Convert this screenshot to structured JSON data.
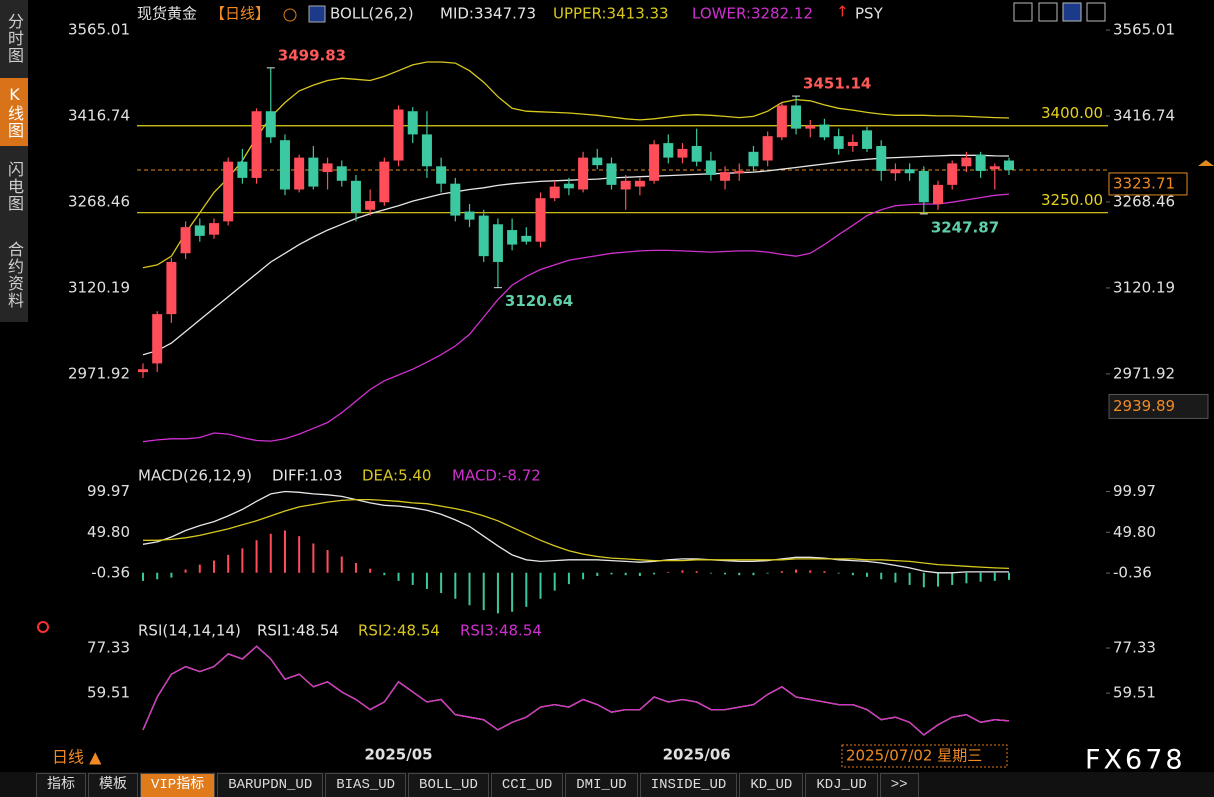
{
  "chart_data": [
    {
      "type": "candlestick",
      "title": "现货黄金",
      "period_tag": "【日线】",
      "indicator": "BOLL(26,2)",
      "extra_label": "PSY",
      "categories": [
        null,
        null,
        null,
        null,
        null,
        null,
        null,
        null,
        null,
        null,
        null,
        null,
        null,
        null,
        null,
        null,
        null,
        null,
        "2025/05",
        null,
        null,
        null,
        null,
        null,
        null,
        null,
        null,
        null,
        null,
        null,
        null,
        null,
        null,
        null,
        null,
        null,
        null,
        null,
        null,
        "2025/06",
        null,
        null,
        null,
        null,
        null,
        null,
        null,
        null,
        null,
        null,
        null,
        null,
        null,
        null,
        null,
        null,
        null,
        null,
        null,
        null,
        null,
        null
      ],
      "open": [
        2975,
        2990,
        3075,
        3180,
        3228,
        3212,
        3235,
        3338,
        3310,
        3425,
        3375,
        3290,
        3345,
        3320,
        3330,
        3305,
        3255,
        3268,
        3340,
        3425,
        3385,
        3330,
        3300,
        3252,
        3245,
        3230,
        3220,
        3210,
        3200,
        3275,
        3300,
        3290,
        3345,
        3335,
        3290,
        3295,
        3305,
        3370,
        3345,
        3365,
        3340,
        3305,
        3318,
        3355,
        3340,
        3380,
        3435,
        3395,
        3402,
        3382,
        3365,
        3392,
        3365,
        3318,
        3325,
        3322,
        3265,
        3298,
        3330,
        3350,
        3325,
        3340
      ],
      "high": [
        2990,
        3080,
        3172,
        3235,
        3240,
        3240,
        3345,
        3360,
        3430,
        3499.83,
        3385,
        3350,
        3365,
        3345,
        3340,
        3315,
        3290,
        3345,
        3435,
        3432,
        3425,
        3345,
        3310,
        3265,
        3255,
        3240,
        3240,
        3225,
        3285,
        3305,
        3310,
        3355,
        3360,
        3345,
        3315,
        3310,
        3375,
        3385,
        3370,
        3395,
        3355,
        3330,
        3335,
        3365,
        3390,
        3440,
        3451.14,
        3410,
        3412,
        3395,
        3385,
        3398,
        3375,
        3335,
        3335,
        3330,
        3305,
        3340,
        3355,
        3355,
        3335,
        3345
      ],
      "low": [
        2965,
        2975,
        3060,
        3170,
        3200,
        3205,
        3228,
        3300,
        3300,
        3370,
        3280,
        3285,
        3290,
        3290,
        3295,
        3235,
        3245,
        3262,
        3330,
        3370,
        3310,
        3285,
        3235,
        3225,
        3165,
        3120.64,
        3185,
        3195,
        3190,
        3270,
        3280,
        3285,
        3325,
        3290,
        3255,
        3280,
        3300,
        3335,
        3335,
        3330,
        3305,
        3290,
        3305,
        3320,
        3330,
        3375,
        3385,
        3380,
        3375,
        3350,
        3355,
        3355,
        3305,
        3305,
        3305,
        3247.87,
        3255,
        3290,
        3320,
        3310,
        3290,
        3315
      ],
      "close": [
        2980,
        3075,
        3165,
        3225,
        3210,
        3232,
        3338,
        3310,
        3425,
        3380,
        3290,
        3345,
        3295,
        3335,
        3305,
        3250,
        3270,
        3338,
        3428,
        3385,
        3330,
        3300,
        3245,
        3238,
        3175,
        3165,
        3195,
        3200,
        3275,
        3295,
        3292,
        3345,
        3332,
        3298,
        3305,
        3305,
        3368,
        3345,
        3360,
        3338,
        3315,
        3320,
        3322,
        3330,
        3382,
        3435,
        3395,
        3400,
        3380,
        3360,
        3372,
        3360,
        3322,
        3325,
        3318,
        3268,
        3298,
        3335,
        3345,
        3322,
        3330,
        3323.71
      ],
      "up_color": "#ff4d5a",
      "down_color": "#3cc8a0",
      "series": [
        {
          "name": "MID:3347.73",
          "color": "#e6e6e6",
          "values": [
            3005,
            3012,
            3025,
            3045,
            3065,
            3085,
            3105,
            3125,
            3145,
            3165,
            3180,
            3195,
            3208,
            3220,
            3230,
            3240,
            3248,
            3255,
            3262,
            3270,
            3276,
            3282,
            3286,
            3290,
            3293,
            3297,
            3300,
            3302,
            3304,
            3305,
            3306,
            3307,
            3308,
            3310,
            3311,
            3312,
            3313,
            3314,
            3315,
            3316,
            3317,
            3318,
            3319,
            3320,
            3322,
            3325,
            3328,
            3331,
            3334,
            3337,
            3340,
            3342,
            3344,
            3345,
            3346,
            3347,
            3348,
            3349,
            3349,
            3349,
            3348,
            3347.73
          ]
        },
        {
          "name": "UPPER:3413.33",
          "color": "#d8c81e",
          "values": [
            3155,
            3160,
            3175,
            3215,
            3250,
            3285,
            3310,
            3340,
            3380,
            3415,
            3440,
            3460,
            3470,
            3478,
            3482,
            3480,
            3478,
            3485,
            3495,
            3505,
            3510,
            3510,
            3508,
            3495,
            3475,
            3450,
            3430,
            3425,
            3424,
            3423,
            3422,
            3420,
            3418,
            3415,
            3412,
            3410,
            3412,
            3415,
            3418,
            3419,
            3418,
            3416,
            3414,
            3416,
            3425,
            3440,
            3445,
            3443,
            3436,
            3430,
            3427,
            3423,
            3420,
            3418,
            3418,
            3418,
            3417,
            3417,
            3416,
            3415,
            3414,
            3413.33
          ]
        },
        {
          "name": "LOWER:3282.12",
          "color": "#d030d0",
          "values": [
            2855,
            2858,
            2860,
            2860,
            2862,
            2870,
            2868,
            2862,
            2857,
            2856,
            2860,
            2868,
            2878,
            2888,
            2905,
            2925,
            2945,
            2960,
            2970,
            2980,
            2992,
            3005,
            3020,
            3040,
            3070,
            3100,
            3125,
            3140,
            3152,
            3160,
            3168,
            3172,
            3176,
            3180,
            3182,
            3184,
            3185,
            3185,
            3184,
            3183,
            3182,
            3183,
            3184,
            3184,
            3182,
            3178,
            3175,
            3180,
            3195,
            3212,
            3228,
            3245,
            3255,
            3262,
            3264,
            3265,
            3265,
            3268,
            3272,
            3276,
            3280,
            3282.12
          ]
        }
      ],
      "ylim": [
        2832,
        3591
      ],
      "yticks": [
        3565.01,
        3416.74,
        3268.46,
        3120.19,
        2971.92
      ],
      "annotations": [
        3499.83,
        3451.14,
        3120.64,
        3247.87
      ],
      "hlines": [
        {
          "value": 3400,
          "label": "3400.00"
        },
        {
          "value": 3250,
          "label": "3250.00"
        }
      ],
      "hline_color": "#e6d21e",
      "last_price": 3323.71,
      "cursor_price": 2939.89
    },
    {
      "type": "macd",
      "title": "MACD(26,12,9)",
      "series": [
        {
          "name": "DIFF:1.03",
          "color": "#e6e6e6",
          "type": "line",
          "values": [
            35,
            38,
            44,
            52,
            58,
            63,
            70,
            78,
            88,
            97,
            100,
            99,
            97,
            96,
            94,
            90,
            86,
            83,
            82,
            80,
            77,
            72,
            65,
            57,
            45,
            33,
            22,
            16,
            14,
            15,
            16,
            16,
            16,
            15,
            14,
            13,
            14,
            16,
            17,
            17,
            16,
            15,
            14,
            14,
            15,
            17,
            19,
            19,
            18,
            16,
            15,
            14,
            12,
            9,
            6,
            2,
            0,
            0,
            1,
            1,
            1,
            1.03
          ]
        },
        {
          "name": "DEA:5.40",
          "color": "#d8c81e",
          "type": "line",
          "values": [
            40,
            40,
            41,
            43,
            46,
            50,
            54,
            59,
            64,
            70,
            76,
            81,
            84,
            87,
            89,
            90,
            90,
            89,
            88,
            86,
            85,
            82,
            79,
            75,
            70,
            64,
            56,
            48,
            40,
            33,
            27,
            23,
            20,
            18,
            17,
            16,
            15,
            15,
            15,
            16,
            16,
            16,
            16,
            16,
            16,
            16,
            17,
            17,
            17,
            17,
            17,
            16,
            16,
            15,
            14,
            12,
            10,
            9,
            8,
            7,
            6,
            5.4
          ]
        },
        {
          "name": "MACD:-8.72",
          "color": "#d030d0",
          "type": "bar",
          "values": [
            -10,
            -8,
            -6,
            4,
            10,
            15,
            22,
            30,
            40,
            48,
            52,
            45,
            36,
            28,
            20,
            12,
            5,
            -3,
            -10,
            -15,
            -20,
            -25,
            -32,
            -40,
            -46,
            -50,
            -48,
            -42,
            -32,
            -22,
            -14,
            -8,
            -4,
            -2,
            -3,
            -4,
            -2,
            1,
            3,
            2,
            -1,
            -2,
            -3,
            -3,
            -1,
            2,
            4,
            3,
            2,
            -1,
            -3,
            -5,
            -8,
            -12,
            -15,
            -18,
            -17,
            -15,
            -13,
            -11,
            -10,
            -8.72
          ]
        }
      ],
      "up_color": "#ff4d5a",
      "down_color": "#3cc8a0",
      "ylim": [
        -52,
        108
      ],
      "yticks": [
        99.97,
        {
          "value": 49.8,
          "label": "49.80"
        },
        -0.36
      ]
    },
    {
      "type": "rsi",
      "title": "RSI(14,14,14)",
      "series": [
        {
          "name": "RSI1:48.54",
          "color": "#e6e6e6",
          "values": [
            45,
            58,
            67,
            70,
            68,
            70,
            75,
            73,
            78,
            73,
            65,
            67,
            62,
            64,
            60,
            57,
            53,
            56,
            64,
            60,
            56,
            57,
            51,
            50,
            49,
            45,
            48,
            50,
            54,
            55,
            54,
            57,
            55,
            52,
            53,
            53,
            58,
            56,
            57,
            56,
            53,
            53,
            54,
            55,
            59,
            62,
            58,
            57,
            56,
            55,
            55,
            53,
            49,
            50,
            48,
            43,
            47,
            50,
            51,
            48,
            49,
            48.54
          ]
        },
        {
          "name": "RSI2:48.54",
          "color": "#d8c81e",
          "values": [
            45,
            58,
            67,
            70,
            68,
            70,
            75,
            73,
            78,
            73,
            65,
            67,
            62,
            64,
            60,
            57,
            53,
            56,
            64,
            60,
            56,
            57,
            51,
            50,
            49,
            45,
            48,
            50,
            54,
            55,
            54,
            57,
            55,
            52,
            53,
            53,
            58,
            56,
            57,
            56,
            53,
            53,
            54,
            55,
            59,
            62,
            58,
            57,
            56,
            55,
            55,
            53,
            49,
            50,
            48,
            43,
            47,
            50,
            51,
            48,
            49,
            48.54
          ]
        },
        {
          "name": "RSI3:48.54",
          "color": "#d030d0",
          "values": [
            45,
            58,
            67,
            70,
            68,
            70,
            75,
            73,
            78,
            73,
            65,
            67,
            62,
            64,
            60,
            57,
            53,
            56,
            64,
            60,
            56,
            57,
            51,
            50,
            49,
            45,
            48,
            50,
            54,
            55,
            54,
            57,
            55,
            52,
            53,
            53,
            58,
            56,
            57,
            56,
            53,
            53,
            54,
            55,
            59,
            62,
            58,
            57,
            56,
            55,
            55,
            53,
            49,
            50,
            48,
            43,
            47,
            50,
            51,
            48,
            49,
            48.54
          ]
        }
      ],
      "ylim": [
        41,
        80.5
      ],
      "yticks": [
        77.33,
        59.51
      ]
    }
  ],
  "ui": {
    "sidebar": [
      "分时图",
      "K线图",
      "闪电图",
      "合约资料"
    ],
    "sidebar_active": 1,
    "tabs": [
      "指标",
      "模板",
      "VIP指标",
      "BARUPDN_UD",
      "BIAS_UD",
      "BOLL_UD",
      "CCI_UD",
      "DMI_UD",
      "INSIDE_UD",
      "KD_UD",
      "KDJ_UD",
      ">>"
    ],
    "tabs_active": 2,
    "period": "日线 ▲",
    "date_box": "2025/07/02 星期三",
    "watermark": "FX678"
  }
}
